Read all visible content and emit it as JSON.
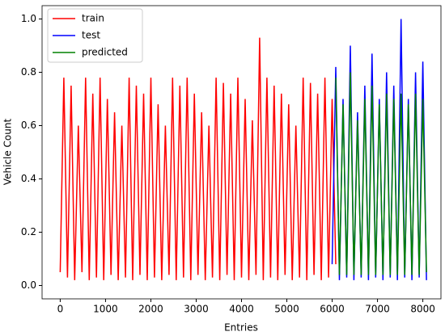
{
  "chart_data": {
    "type": "line",
    "xlabel": "Entries",
    "ylabel": "Vehicle Count",
    "xlim": [
      -400,
      8400
    ],
    "ylim": [
      -0.05,
      1.05
    ],
    "xticks": [
      0,
      1000,
      2000,
      3000,
      4000,
      5000,
      6000,
      7000,
      8000
    ],
    "yticks": [
      {
        "value": 0,
        "label": "0.0"
      },
      {
        "value": 0.2,
        "label": "0.2"
      },
      {
        "value": 0.4,
        "label": "0.4"
      },
      {
        "value": 0.6,
        "label": "0.6"
      },
      {
        "value": 0.8,
        "label": "0.8"
      },
      {
        "value": 1,
        "label": "1.0"
      }
    ],
    "legend": "upper left",
    "series": [
      {
        "name": "train",
        "color": "#ff0000",
        "x": [
          0,
          80,
          160,
          240,
          320,
          400,
          480,
          560,
          640,
          720,
          800,
          880,
          960,
          1040,
          1120,
          1200,
          1280,
          1360,
          1440,
          1520,
          1600,
          1680,
          1760,
          1840,
          1920,
          2000,
          2080,
          2160,
          2240,
          2320,
          2400,
          2480,
          2560,
          2640,
          2720,
          2800,
          2880,
          2960,
          3040,
          3120,
          3200,
          3280,
          3360,
          3440,
          3520,
          3600,
          3680,
          3760,
          3840,
          3920,
          4000,
          4080,
          4160,
          4240,
          4320,
          4400,
          4480,
          4560,
          4640,
          4720,
          4800,
          4880,
          4960,
          5040,
          5120,
          5200,
          5280,
          5360,
          5440,
          5520,
          5600,
          5680,
          5760,
          5840,
          5920,
          6000,
          6080
        ],
        "values": [
          0.05,
          0.78,
          0.03,
          0.75,
          0.02,
          0.6,
          0.05,
          0.78,
          0.02,
          0.72,
          0.03,
          0.78,
          0.02,
          0.7,
          0.04,
          0.65,
          0.02,
          0.6,
          0.03,
          0.78,
          0.02,
          0.75,
          0.04,
          0.72,
          0.02,
          0.78,
          0.03,
          0.68,
          0.02,
          0.6,
          0.04,
          0.78,
          0.02,
          0.75,
          0.03,
          0.78,
          0.02,
          0.72,
          0.04,
          0.65,
          0.02,
          0.6,
          0.03,
          0.78,
          0.02,
          0.76,
          0.04,
          0.72,
          0.02,
          0.78,
          0.03,
          0.7,
          0.02,
          0.62,
          0.04,
          0.93,
          0.02,
          0.78,
          0.03,
          0.75,
          0.02,
          0.72,
          0.04,
          0.68,
          0.02,
          0.6,
          0.03,
          0.78,
          0.02,
          0.76,
          0.04,
          0.72,
          0.02,
          0.78,
          0.03,
          0.7,
          0.08
        ]
      },
      {
        "name": "test",
        "color": "#0000ff",
        "x": [
          6000,
          6080,
          6160,
          6240,
          6320,
          6400,
          6480,
          6560,
          6640,
          6720,
          6800,
          6880,
          6960,
          7040,
          7120,
          7200,
          7280,
          7360,
          7440,
          7520,
          7600,
          7680,
          7760,
          7840,
          7920,
          8000,
          8080
        ],
        "values": [
          0.08,
          0.82,
          0.02,
          0.7,
          0.03,
          0.9,
          0.02,
          0.65,
          0.03,
          0.75,
          0.02,
          0.87,
          0.03,
          0.7,
          0.02,
          0.8,
          0.03,
          0.75,
          0.02,
          1.0,
          0.03,
          0.7,
          0.02,
          0.8,
          0.03,
          0.84,
          0.02
        ]
      },
      {
        "name": "predicted",
        "color": "#008000",
        "x": [
          6080,
          6160,
          6240,
          6320,
          6400,
          6480,
          6560,
          6640,
          6720,
          6800,
          6880,
          6960,
          7040,
          7120,
          7200,
          7280,
          7360,
          7440,
          7520,
          7600,
          7680,
          7760,
          7840,
          7920,
          8000,
          8080
        ],
        "values": [
          0.78,
          0.04,
          0.68,
          0.04,
          0.8,
          0.04,
          0.62,
          0.04,
          0.7,
          0.04,
          0.75,
          0.04,
          0.68,
          0.04,
          0.72,
          0.04,
          0.7,
          0.04,
          0.72,
          0.04,
          0.68,
          0.04,
          0.72,
          0.04,
          0.7,
          0.05
        ]
      }
    ]
  }
}
